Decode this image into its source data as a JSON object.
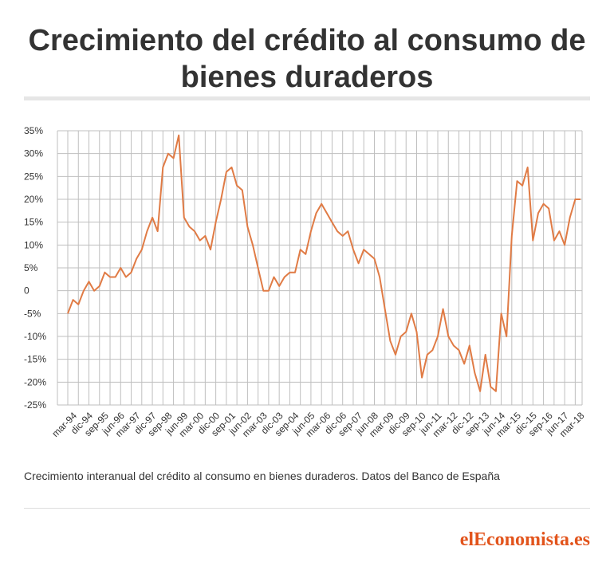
{
  "header": {
    "title_line1": "Crecimiento del crédito al consumo de",
    "title_line2": "bienes duraderos"
  },
  "caption": "Crecimiento interanual del crédito al consumo en bienes duraderos. Datos del Banco de España",
  "brand": "elEconomista.es",
  "colors": {
    "line": "#e07b45",
    "grid": "#bfbfbf",
    "text": "#333333",
    "brand": "#e2541c"
  },
  "chart_data": {
    "type": "line",
    "title": "",
    "xlabel": "",
    "ylabel": "",
    "grid": true,
    "ylim": [
      -25,
      35
    ],
    "y_ticks": [
      {
        "value": 35,
        "label": "35%"
      },
      {
        "value": 30,
        "label": "30%"
      },
      {
        "value": 25,
        "label": "25%"
      },
      {
        "value": 20,
        "label": "20%"
      },
      {
        "value": 15,
        "label": "15%"
      },
      {
        "value": 10,
        "label": "10%"
      },
      {
        "value": 5,
        "label": "5%"
      },
      {
        "value": 0,
        "label": "0"
      },
      {
        "value": -5,
        "label": "-5%"
      },
      {
        "value": -10,
        "label": "-10%"
      },
      {
        "value": -15,
        "label": "-15%"
      },
      {
        "value": -20,
        "label": "-20%"
      },
      {
        "value": -25,
        "label": "-25%"
      }
    ],
    "x_tick_labels": [
      "mar-94",
      "dic-94",
      "sep-95",
      "jun-96",
      "mar-97",
      "dic-97",
      "sep-98",
      "jun-99",
      "mar-00",
      "dic-00",
      "sep-01",
      "jun-02",
      "mar-03",
      "dic-03",
      "sep-04",
      "jun-05",
      "mar-06",
      "dic-06",
      "sep-07",
      "jun-08",
      "mar-09",
      "dic-09",
      "sep-10",
      "jun-11",
      "mar-12",
      "dic-12",
      "sep-13",
      "jun-14",
      "mar-15",
      "dic-15",
      "sep-16",
      "jun-17",
      "mar-18"
    ],
    "series": [
      {
        "values": [
          -5,
          -2,
          -3,
          0,
          2,
          0,
          1,
          4,
          3,
          3,
          5,
          3,
          4,
          7,
          9,
          13,
          16,
          13,
          27,
          30,
          29,
          34,
          16,
          14,
          13,
          11,
          12,
          9,
          15,
          20,
          26,
          27,
          23,
          22,
          14,
          10,
          5,
          0,
          0,
          3,
          1,
          3,
          4,
          4,
          9,
          8,
          13,
          17,
          19,
          17,
          15,
          13,
          12,
          13,
          9,
          6,
          9,
          8,
          7,
          3,
          -4,
          -11,
          -14,
          -10,
          -9,
          -5,
          -9,
          -19,
          -14,
          -13,
          -10,
          -4,
          -10,
          -12,
          -13,
          -16,
          -12,
          -18,
          -22,
          -14,
          -21,
          -22,
          -5,
          -10,
          12,
          24,
          23,
          27,
          11,
          17,
          19,
          18,
          11,
          13,
          10,
          16,
          20,
          20
        ]
      }
    ]
  }
}
